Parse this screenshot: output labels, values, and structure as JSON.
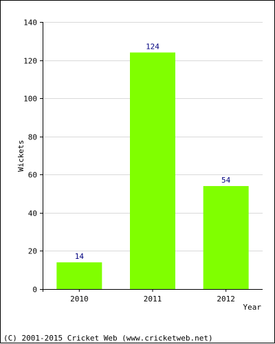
{
  "chart_data": {
    "type": "bar",
    "categories": [
      "2010",
      "2011",
      "2012"
    ],
    "values": [
      14,
      124,
      54
    ],
    "xlabel": "Year",
    "ylabel": "Wickets",
    "ylim": [
      0,
      140
    ],
    "yticks": [
      0,
      20,
      40,
      60,
      80,
      100,
      120,
      140
    ],
    "grid": true,
    "bar_color": "#80ff00"
  },
  "footer": "(C) 2001-2015 Cricket Web (www.cricketweb.net)"
}
